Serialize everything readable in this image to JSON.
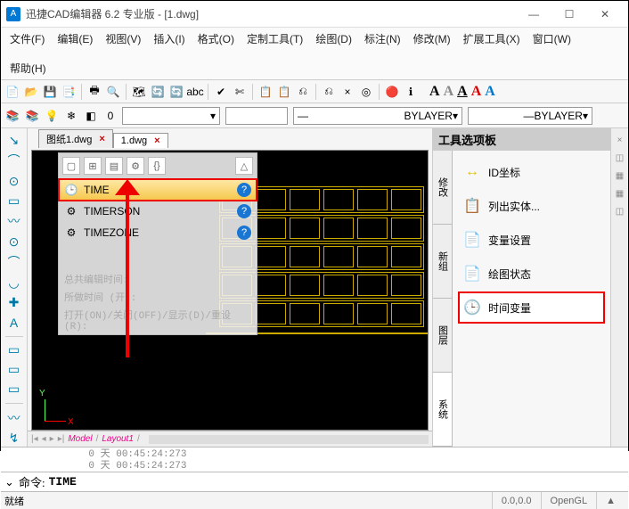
{
  "title": "迅捷CAD编辑器 6.2 专业版  - [1.dwg]",
  "menu": {
    "items": [
      "文件(F)",
      "编辑(E)",
      "视图(V)",
      "插入(I)",
      "格式(O)",
      "定制工具(T)",
      "绘图(D)",
      "标注(N)",
      "修改(M)",
      "扩展工具(X)",
      "窗口(W)",
      "帮助(H)"
    ]
  },
  "layerbar": {
    "bylayer1": "BYLAYER",
    "bylayer2": "BYLAYER"
  },
  "tabs": {
    "inactive": "图纸1.dwg",
    "active": "1.dwg"
  },
  "palette": {
    "title": "工具选项板",
    "sidetabs": [
      "修改",
      "新组",
      "图层",
      "系统"
    ],
    "items": [
      {
        "icon": "↔",
        "label": "ID坐标",
        "color": "#e6c200"
      },
      {
        "icon": "📋",
        "label": "列出实体...",
        "color": "#1976d2"
      },
      {
        "icon": "📄",
        "label": "变量设置",
        "color": "#888"
      },
      {
        "icon": "📄",
        "label": "绘图状态",
        "color": "#1976d2"
      },
      {
        "icon": "🕒",
        "label": "时间变量",
        "color": "#1976d2",
        "hot": true
      }
    ]
  },
  "popup": {
    "items": [
      {
        "icon": "🕒",
        "label": "TIME",
        "hl": true
      },
      {
        "icon": "⚙",
        "label": "TIMERSON"
      },
      {
        "icon": "⚙",
        "label": "TIMEZONE"
      }
    ],
    "history": [
      "总共编辑时间:",
      "所做时间 (开):",
      "打开(ON)/关闭(OFF)/显示(D)/重设(R):"
    ]
  },
  "cmd_out": "              0 天 00:45:24:273\n              0 天 00:45:24:273",
  "cmdline": {
    "label": "命令:",
    "value": "TIME"
  },
  "model_tabs": {
    "a": "Model",
    "b": "Layout1"
  },
  "status": {
    "ready": "就绪",
    "coord": "0.0,0.0",
    "render": "OpenGL"
  },
  "toolbar_icons": [
    "📄",
    "📂",
    "💾",
    "📑",
    "🖶",
    "🔍",
    "🗺",
    "🔄",
    "🔄",
    "abc",
    "✔",
    "✄",
    "📋",
    "📋",
    "⎌",
    "⎌",
    "×",
    "◎",
    "🔴",
    "ℹ"
  ],
  "layer_icons": [
    "📚",
    "📚",
    "💡",
    "❄",
    "◧",
    "0"
  ],
  "left_icons": [
    "↘",
    "⌒",
    "⊙",
    "▭",
    "〰",
    "⊙",
    "⌒",
    "◡",
    "✚",
    "A",
    "▭",
    "▭",
    "▭",
    "〰",
    "↯"
  ],
  "ucs": {
    "x": "X",
    "y": "Y"
  }
}
